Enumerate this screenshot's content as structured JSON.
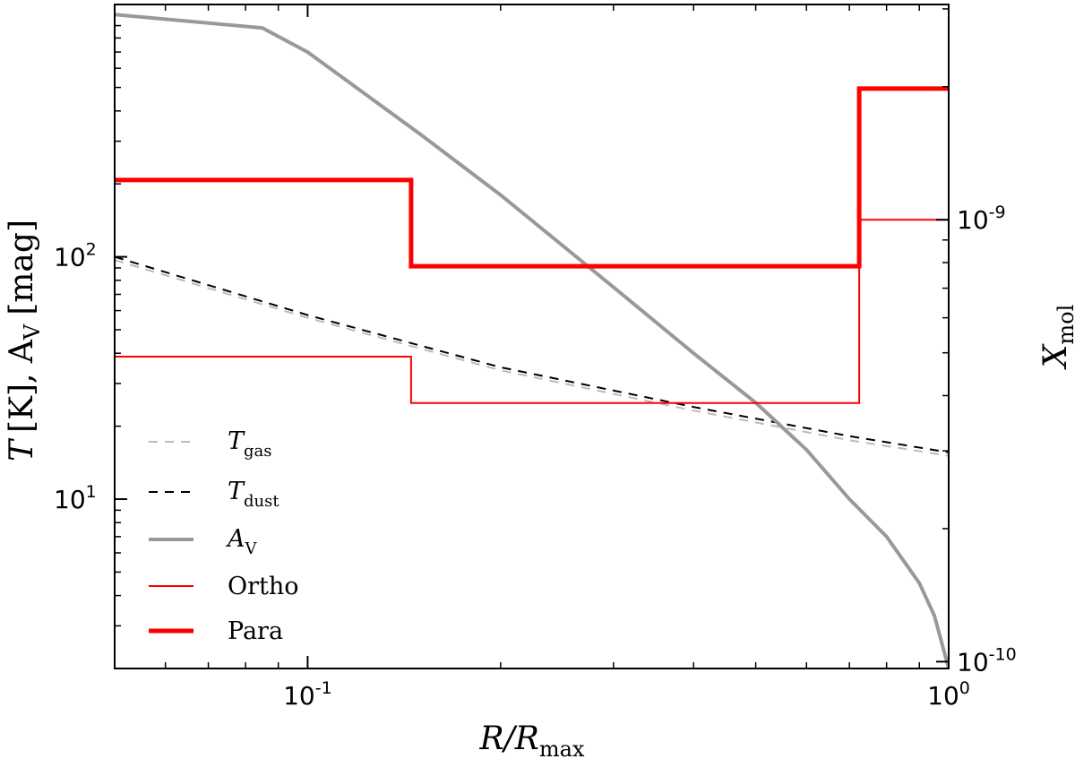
{
  "chart_data": {
    "type": "line",
    "x_scale": "log",
    "y_scale": "log",
    "y2_scale": "log",
    "xlim": [
      0.05,
      1.0
    ],
    "ylim": [
      2.0,
      1100
    ],
    "y2lim": [
      9.65e-11,
      3.07e-09
    ],
    "grid": false,
    "legend_position": "bottom-left",
    "xlabel": {
      "main": "R/R",
      "sub": "max"
    },
    "ylabel": {
      "main": "T",
      "unit": "[K],  A",
      "unit_sub": "V",
      "unit2": "[mag]"
    },
    "y2label": {
      "main": "X",
      "sub": "mol"
    },
    "x_ticks": [
      {
        "value": 0.1,
        "base": "10",
        "exp": "-1"
      },
      {
        "value": 1.0,
        "base": "10",
        "exp": "0"
      }
    ],
    "y_ticks": [
      {
        "value": 10,
        "base": "10",
        "exp": "1"
      },
      {
        "value": 100,
        "base": "10",
        "exp": "2"
      }
    ],
    "y2_ticks": [
      {
        "value": 1e-10,
        "base": "10",
        "exp": "-10"
      },
      {
        "value": 1e-09,
        "base": "10",
        "exp": "-9"
      }
    ],
    "series": [
      {
        "key": "tgas",
        "name": "T",
        "name_sub": "gas",
        "axis": "left",
        "style": "dashed",
        "color": "#bbbbbb",
        "width": 2,
        "x": [
          0.05,
          0.1,
          0.2,
          0.4,
          0.7,
          1.0
        ],
        "y": [
          97,
          56,
          34,
          23.2,
          17.5,
          15.1
        ]
      },
      {
        "key": "tdust",
        "name": "T",
        "name_sub": "dust",
        "axis": "left",
        "style": "dashed",
        "color": "#000000",
        "width": 2,
        "x": [
          0.05,
          0.1,
          0.2,
          0.4,
          0.7,
          1.0
        ],
        "y": [
          100,
          57.5,
          35,
          24,
          18.2,
          15.6
        ]
      },
      {
        "key": "av",
        "name": "A",
        "name_sub": "V",
        "axis": "left",
        "style": "solid",
        "color": "#999999",
        "width": 4,
        "x": [
          0.05,
          0.085,
          0.1,
          0.15,
          0.2,
          0.3,
          0.4,
          0.5,
          0.6,
          0.7,
          0.8,
          0.9,
          0.95,
          1.0
        ],
        "y": [
          1000,
          880,
          700,
          320,
          180,
          75,
          40,
          25,
          16,
          10,
          7,
          4.5,
          3.3,
          2.0
        ]
      },
      {
        "key": "ortho",
        "name": "Ortho",
        "axis": "right",
        "style": "step",
        "color": "#ff0000",
        "width": 2,
        "x": [
          0.05,
          0.145,
          0.145,
          0.725,
          0.725,
          1.0
        ],
        "y": [
          4.9e-10,
          4.9e-10,
          3.85e-10,
          3.85e-10,
          1e-09,
          1e-09
        ]
      },
      {
        "key": "para",
        "name": "Para",
        "axis": "right",
        "style": "step",
        "color": "#ff0000",
        "width": 5,
        "x": [
          0.05,
          0.145,
          0.145,
          0.725,
          0.725,
          1.0
        ],
        "y": [
          1.23e-09,
          1.23e-09,
          7.85e-10,
          7.85e-10,
          1.98e-09,
          1.98e-09
        ]
      }
    ]
  }
}
